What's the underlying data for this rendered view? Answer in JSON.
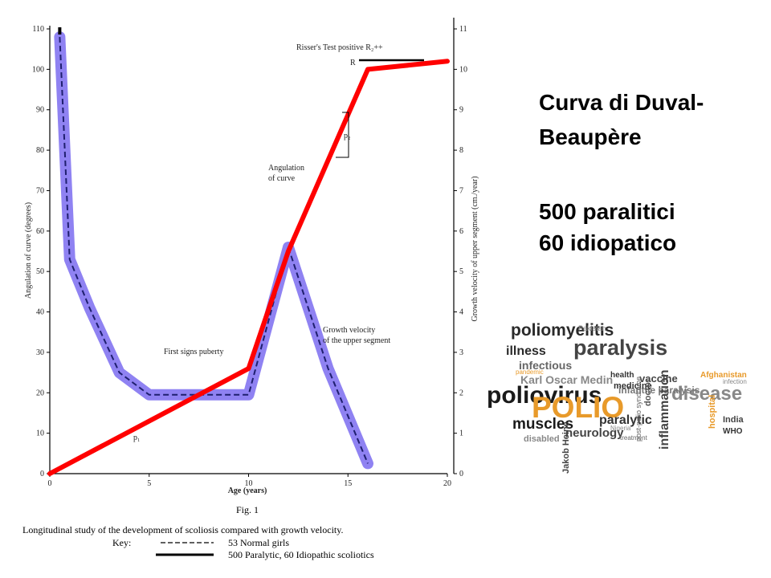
{
  "chart_data": {
    "type": "line",
    "x": [
      0,
      1,
      2,
      3,
      4,
      5,
      6,
      7,
      8,
      9,
      10,
      11,
      12,
      13,
      14,
      15,
      16
    ],
    "series": [
      {
        "name": "53 Normal girls",
        "style": "dashed",
        "axis": "left",
        "color": "#1f1f6f",
        "band_color": "#7b6cf0",
        "x": [
          0.5,
          1,
          2,
          3.5,
          5,
          6,
          8,
          10,
          12,
          14,
          16
        ],
        "values": [
          108,
          53,
          41,
          25,
          19.5,
          19.5,
          19.5,
          19.5,
          56,
          26,
          2.5
        ]
      },
      {
        "name": "500 Paralytic, 60 Idiopathic scoliotics",
        "style": "solid",
        "axis": "right",
        "color": "#ff0000",
        "x": [
          0,
          10,
          12,
          16,
          20
        ],
        "values": [
          0,
          2.6,
          5.5,
          10,
          10.2
        ]
      }
    ],
    "xlim": [
      0,
      20
    ],
    "ylim_left": [
      0,
      110
    ],
    "ylim_right": [
      0,
      11
    ],
    "x_ticks": [
      "0",
      "5",
      "10",
      "15",
      "20"
    ],
    "y_left_ticks": [
      "0",
      "10",
      "20",
      "30",
      "40",
      "50",
      "60",
      "70",
      "80",
      "90",
      "100",
      "110"
    ],
    "y_right_ticks": [
      "0",
      "1",
      "2",
      "3",
      "4",
      "5",
      "6",
      "7",
      "8",
      "9",
      "10",
      "11"
    ],
    "xlabel": "Age (years)",
    "ylabel_left": "Angulation of curve (degrees)",
    "ylabel_right": "Growth velocity of upper segment (cm./year)",
    "annotations": {
      "risser": "Risser's Test positive R₂++",
      "r_label": "R",
      "p2": "p₂",
      "p1": "p₁",
      "angulation": [
        "Angulation",
        "of curve"
      ],
      "growth_velocity": [
        "Growth velocity",
        "of the upper segment"
      ],
      "puberty": "First signs puberty"
    },
    "caption": {
      "fig": "Fig. 1",
      "text": "Longitudinal study of the development of scoliosis compared with growth velocity.",
      "key_label": "Key:",
      "key_dashed": "53 Normal girls",
      "key_solid": "500 Paralytic, 60 Idiopathic scoliotics"
    }
  },
  "slide": {
    "title_line1": "Curva di Duval-",
    "title_line2": "Beaupère",
    "stat1": "500 paralitici",
    "stat2": "60 idiopatico"
  },
  "word_cloud": {
    "words": [
      {
        "text": "poliomyelitis",
        "color": "#2a2a2a"
      },
      {
        "text": "paralysis",
        "color": "#444444"
      },
      {
        "text": "illness",
        "color": "#2a2a2a"
      },
      {
        "text": "infectious",
        "color": "#666666"
      },
      {
        "text": "Karl Oscar Medin",
        "color": "#888888"
      },
      {
        "text": "vaccine",
        "color": "#444444"
      },
      {
        "text": "poliovirus",
        "color": "#1a1a1a"
      },
      {
        "text": "POLIO",
        "color": "#e89a2a"
      },
      {
        "text": "disease",
        "color": "#888888"
      },
      {
        "text": "infantile paralysis",
        "color": "#777777"
      },
      {
        "text": "health",
        "color": "#333333"
      },
      {
        "text": "medicine",
        "color": "#333333"
      },
      {
        "text": "muscles",
        "color": "#1a1a1a"
      },
      {
        "text": "paralytic",
        "color": "#333333"
      },
      {
        "text": "neurology",
        "color": "#444444"
      },
      {
        "text": "disabled",
        "color": "#888888"
      },
      {
        "text": "inflammation",
        "color": "#444444"
      },
      {
        "text": "Afghanistan",
        "color": "#e89a2a"
      },
      {
        "text": "India",
        "color": "#444444"
      },
      {
        "text": "WHO",
        "color": "#333333"
      },
      {
        "text": "hospital",
        "color": "#e89a2a"
      },
      {
        "text": "Jakob Heine",
        "color": "#444444"
      },
      {
        "text": "doctor",
        "color": "#555555"
      },
      {
        "text": "post-polio syndrome",
        "color": "#666666"
      },
      {
        "text": "treatment",
        "color": "#666666"
      },
      {
        "text": "pandemic",
        "color": "#e89a2a"
      },
      {
        "text": "Pakistan",
        "color": "#888888"
      },
      {
        "text": "Nigeria",
        "color": "#888888"
      },
      {
        "text": "infection",
        "color": "#888888"
      }
    ]
  }
}
